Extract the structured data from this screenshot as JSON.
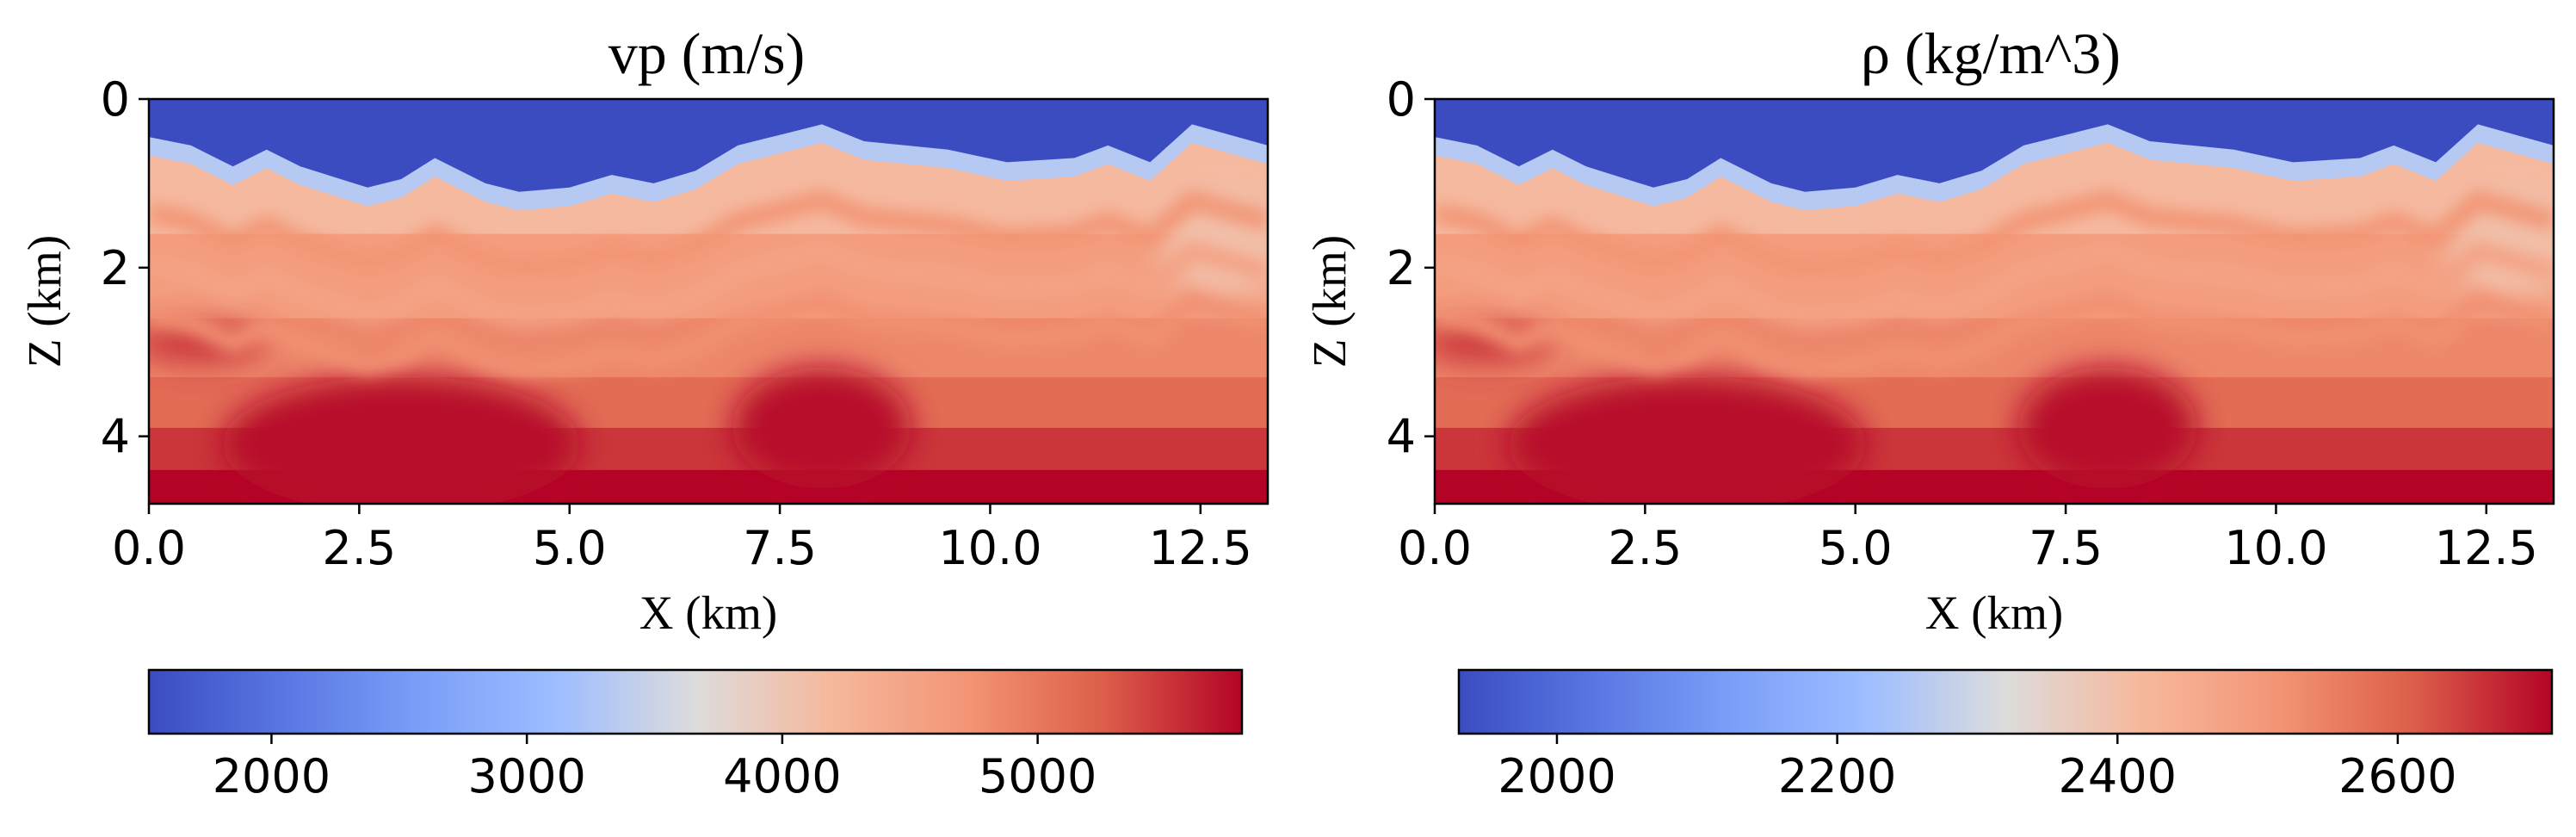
{
  "chart_data": [
    {
      "type": "heatmap",
      "title": "vp (m/s)",
      "xlabel": "X (km)",
      "ylabel": "Z (km)",
      "xlim": [
        0,
        13.3
      ],
      "ylim": [
        4.8,
        0
      ],
      "x_ticks": [
        "0.0",
        "2.5",
        "5.0",
        "7.5",
        "10.0",
        "12.5"
      ],
      "y_ticks": [
        "0",
        "2",
        "4"
      ],
      "colormap": "coolwarm",
      "colorbar": {
        "range": [
          1520,
          5800
        ],
        "ticks": [
          "2000",
          "3000",
          "4000",
          "5000"
        ]
      },
      "value_range": [
        1520,
        5800
      ],
      "water_value": 1520,
      "surface_depth_profile": {
        "x": [
          0,
          0.5,
          1.0,
          1.4,
          1.8,
          2.6,
          3.0,
          3.4,
          4.0,
          4.4,
          5.0,
          5.5,
          6.0,
          6.5,
          7.0,
          7.6,
          8.0,
          8.5,
          9.0,
          9.5,
          10.2,
          11.0,
          11.4,
          11.9,
          12.4,
          13.3
        ],
        "z": [
          0.45,
          0.55,
          0.8,
          0.6,
          0.8,
          1.05,
          0.95,
          0.7,
          1.0,
          1.1,
          1.05,
          0.9,
          1.0,
          0.85,
          0.55,
          0.4,
          0.3,
          0.5,
          0.55,
          0.6,
          0.75,
          0.7,
          0.55,
          0.75,
          0.3,
          0.55
        ]
      }
    },
    {
      "type": "heatmap",
      "title": "ρ (kg/m^3)",
      "xlabel": "X (km)",
      "ylabel": "Z (km)",
      "xlim": [
        0,
        13.3
      ],
      "ylim": [
        4.8,
        0
      ],
      "x_ticks": [
        "0.0",
        "2.5",
        "5.0",
        "7.5",
        "10.0",
        "12.5"
      ],
      "y_ticks": [
        "0",
        "2",
        "4"
      ],
      "colormap": "coolwarm",
      "colorbar": {
        "range": [
          1930,
          2710
        ],
        "ticks": [
          "2000",
          "2200",
          "2400",
          "2600"
        ]
      },
      "value_range": [
        1930,
        2710
      ],
      "water_value": 1930,
      "surface_depth_profile": {
        "x": [
          0,
          0.5,
          1.0,
          1.4,
          1.8,
          2.6,
          3.0,
          3.4,
          4.0,
          4.4,
          5.0,
          5.5,
          6.0,
          6.5,
          7.0,
          7.6,
          8.0,
          8.5,
          9.0,
          9.5,
          10.2,
          11.0,
          11.4,
          11.9,
          12.4,
          13.3
        ],
        "z": [
          0.45,
          0.55,
          0.8,
          0.6,
          0.8,
          1.05,
          0.95,
          0.7,
          1.0,
          1.1,
          1.05,
          0.9,
          1.0,
          0.85,
          0.55,
          0.4,
          0.3,
          0.5,
          0.55,
          0.6,
          0.75,
          0.7,
          0.55,
          0.75,
          0.3,
          0.55
        ]
      }
    }
  ]
}
